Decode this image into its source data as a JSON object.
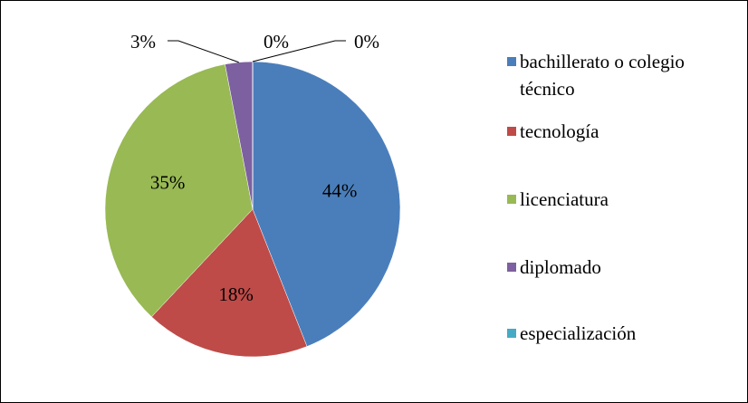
{
  "chart_data": {
    "type": "pie",
    "categories": [
      "bachillerato o colegio técnico",
      "tecnología",
      "licenciatura",
      "diplomado",
      "especialización",
      null
    ],
    "values": [
      44,
      18,
      35,
      3,
      0,
      0
    ],
    "value_labels": [
      "44%",
      "18%",
      "35%",
      "3%",
      "0%",
      "0%"
    ],
    "colors": [
      "#4a7ebb",
      "#be4b48",
      "#98b954",
      "#7d60a0",
      "#46aac5",
      "#f79646"
    ],
    "legend": "right"
  }
}
